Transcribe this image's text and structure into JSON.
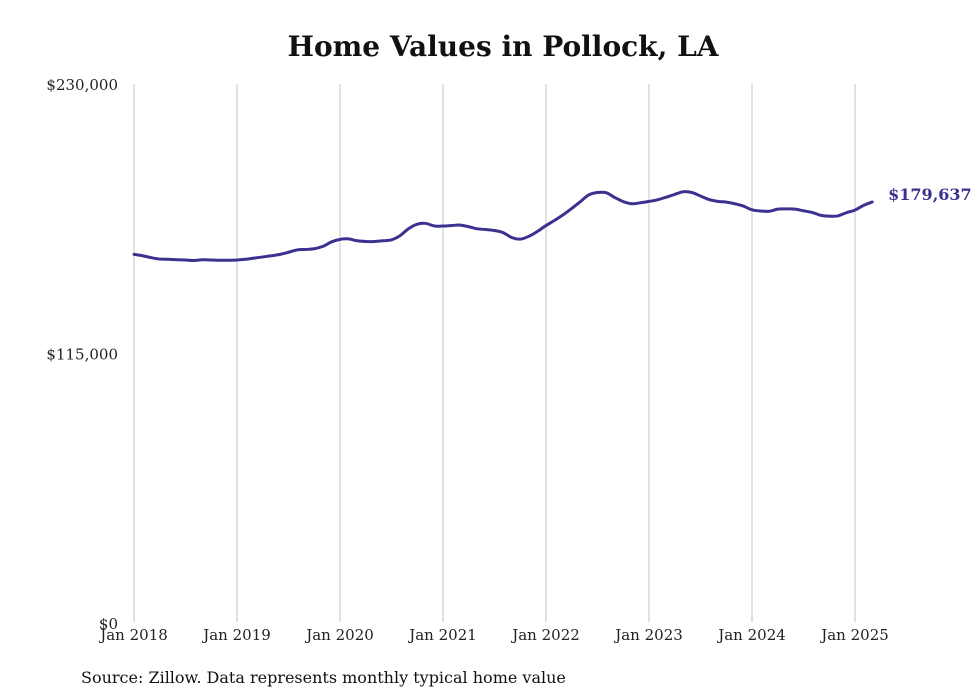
{
  "chart_data": {
    "type": "line",
    "title": "Home Values in Pollock, LA",
    "source": "Source: Zillow. Data represents monthly typical home value",
    "ylim": [
      0,
      230000
    ],
    "yticks": [
      {
        "value": 0,
        "label": "$0"
      },
      {
        "value": 115000,
        "label": "$115,000"
      },
      {
        "value": 230000,
        "label": "$230,000"
      }
    ],
    "xticks": [
      {
        "value": "2018-01",
        "label": "Jan 2018"
      },
      {
        "value": "2019-01",
        "label": "Jan 2019"
      },
      {
        "value": "2020-01",
        "label": "Jan 2020"
      },
      {
        "value": "2021-01",
        "label": "Jan 2021"
      },
      {
        "value": "2022-01",
        "label": "Jan 2022"
      },
      {
        "value": "2023-01",
        "label": "Jan 2023"
      },
      {
        "value": "2024-01",
        "label": "Jan 2024"
      },
      {
        "value": "2025-01",
        "label": "Jan 2025"
      }
    ],
    "grid": "vertical",
    "line_color": "#3b3290",
    "end_label": "$179,637",
    "x": [
      "2018-01",
      "2018-02",
      "2018-03",
      "2018-04",
      "2018-05",
      "2018-06",
      "2018-07",
      "2018-08",
      "2018-09",
      "2018-10",
      "2018-11",
      "2018-12",
      "2019-01",
      "2019-02",
      "2019-03",
      "2019-04",
      "2019-05",
      "2019-06",
      "2019-07",
      "2019-08",
      "2019-09",
      "2019-10",
      "2019-11",
      "2019-12",
      "2020-01",
      "2020-02",
      "2020-03",
      "2020-04",
      "2020-05",
      "2020-06",
      "2020-07",
      "2020-08",
      "2020-09",
      "2020-10",
      "2020-11",
      "2020-12",
      "2021-01",
      "2021-02",
      "2021-03",
      "2021-04",
      "2021-05",
      "2021-06",
      "2021-07",
      "2021-08",
      "2021-09",
      "2021-10",
      "2021-11",
      "2021-12",
      "2022-01",
      "2022-02",
      "2022-03",
      "2022-04",
      "2022-05",
      "2022-06",
      "2022-07",
      "2022-08",
      "2022-09",
      "2022-10",
      "2022-11",
      "2022-12",
      "2023-01",
      "2023-02",
      "2023-03",
      "2023-04",
      "2023-05",
      "2023-06",
      "2023-07",
      "2023-08",
      "2023-09",
      "2023-10",
      "2023-11",
      "2023-12",
      "2024-01",
      "2024-02",
      "2024-03",
      "2024-04",
      "2024-05",
      "2024-06",
      "2024-07",
      "2024-08",
      "2024-09",
      "2024-10",
      "2024-11",
      "2024-12",
      "2025-01",
      "2025-02",
      "2025-03"
    ],
    "values": [
      157300,
      156700,
      155900,
      155300,
      155200,
      155000,
      154900,
      154700,
      155000,
      154900,
      154800,
      154800,
      154900,
      155200,
      155700,
      156200,
      156700,
      157300,
      158200,
      159200,
      159400,
      159700,
      160700,
      162600,
      163700,
      163900,
      163100,
      162800,
      162800,
      163100,
      163500,
      165300,
      168300,
      170200,
      170500,
      169400,
      169400,
      169600,
      169800,
      169100,
      168200,
      167900,
      167500,
      166600,
      164500,
      163800,
      165000,
      167100,
      169600,
      171800,
      174200,
      176900,
      179800,
      182700,
      183700,
      183600,
      181600,
      179800,
      178900,
      179300,
      179900,
      180600,
      181700,
      182900,
      184000,
      183700,
      182200,
      180700,
      179900,
      179600,
      178900,
      177900,
      176300,
      175800,
      175700,
      176600,
      176700,
      176600,
      175900,
      175200,
      174000,
      173600,
      173700,
      175100,
      176200,
      178200,
      179637
    ]
  }
}
